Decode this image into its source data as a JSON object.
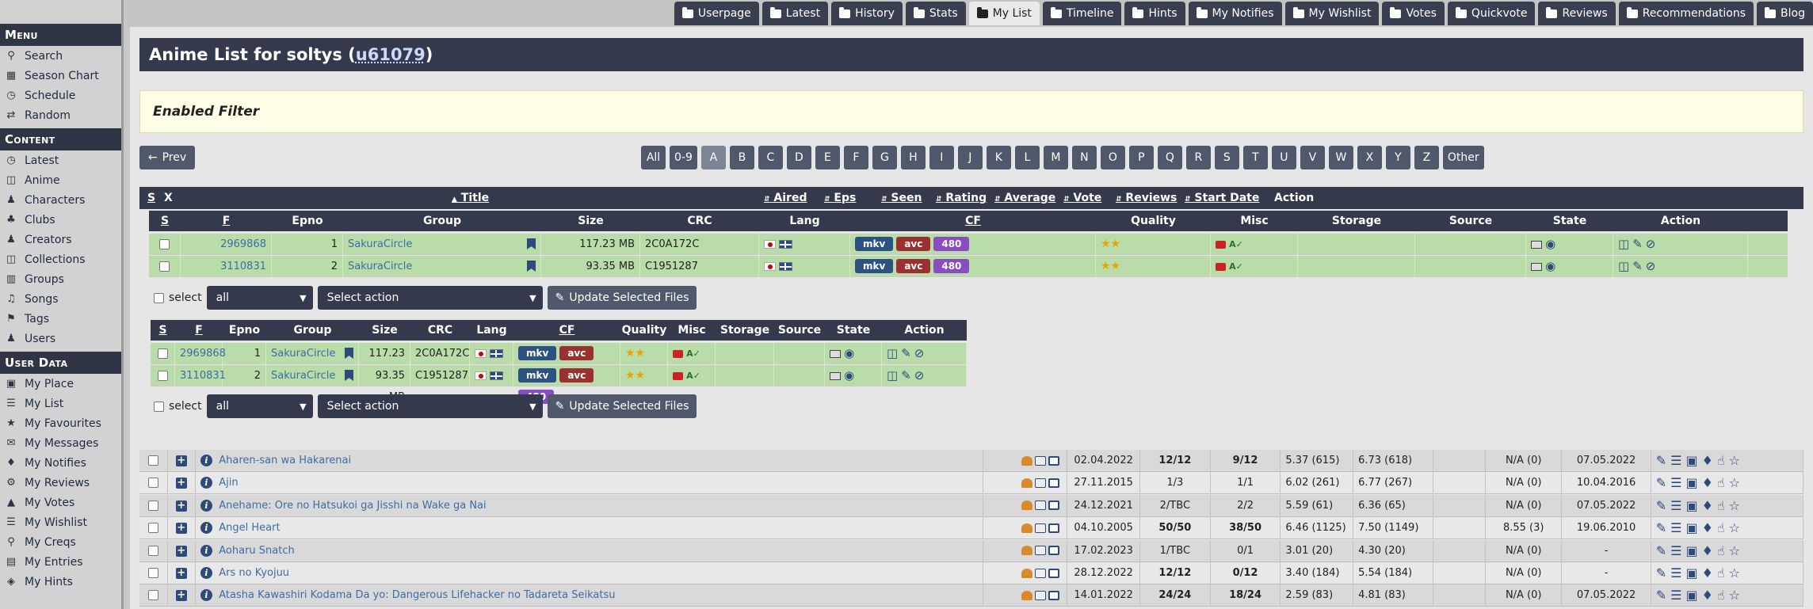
{
  "topnav": {
    "tabs": [
      "Userpage",
      "Latest",
      "History",
      "Stats",
      "My List",
      "Timeline",
      "Hints",
      "My Notifies",
      "My Wishlist",
      "Votes",
      "Quickvote",
      "Reviews",
      "Recommendations",
      "Blog"
    ],
    "active": "My List"
  },
  "sidebar": {
    "menu_title": "Menu",
    "menu": [
      {
        "label": "Search",
        "icon": "search-icon"
      },
      {
        "label": "Season Chart",
        "icon": "calendar-icon"
      },
      {
        "label": "Schedule",
        "icon": "clock-icon"
      },
      {
        "label": "Random",
        "icon": "random-icon"
      }
    ],
    "content_title": "Content",
    "content": [
      {
        "label": "Latest",
        "icon": "clock-icon"
      },
      {
        "label": "Anime",
        "icon": "film-icon"
      },
      {
        "label": "Characters",
        "icon": "users-icon"
      },
      {
        "label": "Clubs",
        "icon": "club-icon"
      },
      {
        "label": "Creators",
        "icon": "person-icon"
      },
      {
        "label": "Collections",
        "icon": "collection-icon"
      },
      {
        "label": "Groups",
        "icon": "group-icon"
      },
      {
        "label": "Songs",
        "icon": "music-icon"
      },
      {
        "label": "Tags",
        "icon": "tag-icon"
      },
      {
        "label": "Users",
        "icon": "user-icon"
      }
    ],
    "userdata_title": "User Data",
    "userdata": [
      {
        "label": "My Place",
        "icon": "id-card-icon"
      },
      {
        "label": "My List",
        "icon": "list-icon"
      },
      {
        "label": "My Favourites",
        "icon": "star-icon"
      },
      {
        "label": "My Messages",
        "icon": "envelope-icon"
      },
      {
        "label": "My Notifies",
        "icon": "bell-icon"
      },
      {
        "label": "My Reviews",
        "icon": "gear-icon"
      },
      {
        "label": "My Votes",
        "icon": "chart-icon"
      },
      {
        "label": "My Wishlist",
        "icon": "book-icon"
      },
      {
        "label": "My Creqs",
        "icon": "search-icon"
      },
      {
        "label": "My Entries",
        "icon": "entries-icon"
      },
      {
        "label": "My Hints",
        "icon": "hint-icon"
      }
    ]
  },
  "page": {
    "title_prefix": "Anime List for soltys (",
    "user_id": "u61079",
    "title_suffix": ")",
    "filter_label": "Enabled Filter",
    "prev_label": "Prev",
    "letters": [
      "All",
      "0-9",
      "A",
      "B",
      "C",
      "D",
      "E",
      "F",
      "G",
      "H",
      "I",
      "J",
      "K",
      "L",
      "M",
      "N",
      "O",
      "P",
      "Q",
      "R",
      "S",
      "T",
      "U",
      "V",
      "W",
      "X",
      "Y",
      "Z",
      "Other"
    ],
    "active_letter": "A"
  },
  "main_header": {
    "s": "S",
    "x": "X",
    "title": "Title",
    "aired": "Aired",
    "eps": "Eps",
    "seen": "Seen",
    "rating": "Rating",
    "average": "Average",
    "vote": "Vote",
    "reviews": "Reviews",
    "start_date": "Start Date",
    "action": "Action"
  },
  "file_header": {
    "s": "S",
    "f": "F",
    "epno": "Epno",
    "group": "Group",
    "size": "Size",
    "crc": "CRC",
    "lang": "Lang",
    "cf": "CF",
    "quality": "Quality",
    "misc": "Misc",
    "storage": "Storage",
    "source": "Source",
    "state": "State",
    "action": "Action"
  },
  "files": [
    {
      "fid": "2969868",
      "epno": "1",
      "group": "SakuraCircle",
      "size": "117.23 MB",
      "crc": "2C0A172C",
      "container": "mkv",
      "codec": "avc",
      "res": "480"
    },
    {
      "fid": "3110831",
      "epno": "2",
      "group": "SakuraCircle",
      "size": "93.35 MB",
      "crc": "C1951287",
      "container": "mkv",
      "codec": "avc",
      "res": "480"
    }
  ],
  "select_bar": {
    "select_label": "select",
    "scope_value": "all",
    "action_value": "Select action",
    "update_label": "Update Selected Files"
  },
  "anime": [
    {
      "title": "Aharen-san wa Hakarenai",
      "aired": "02.04.2022",
      "eps": "12/12",
      "seen": "9/12",
      "rating": "5.37 (615)",
      "average": "6.73 (618)",
      "reviews": "N/A (0)",
      "start": "07.05.2022",
      "eps_bold": true,
      "seen_bold": true
    },
    {
      "title": "Ajin",
      "aired": "27.11.2015",
      "eps": "1/3",
      "seen": "1/1",
      "rating": "6.02 (261)",
      "average": "6.77 (267)",
      "reviews": "N/A (0)",
      "start": "10.04.2016",
      "eps_bold": false,
      "seen_bold": false
    },
    {
      "title": "Anehame: Ore no Hatsukoi ga Jisshi na Wake ga Nai",
      "aired": "24.12.2021",
      "eps": "2/TBC",
      "seen": "2/2",
      "rating": "5.59 (61)",
      "average": "6.36 (65)",
      "reviews": "N/A (0)",
      "start": "07.05.2022",
      "eps_bold": false,
      "seen_bold": false
    },
    {
      "title": "Angel Heart",
      "aired": "04.10.2005",
      "eps": "50/50",
      "seen": "38/50",
      "rating": "6.46 (1125)",
      "average": "7.50 (1149)",
      "reviews": "8.55 (3)",
      "start": "19.06.2010",
      "eps_bold": true,
      "seen_bold": true
    },
    {
      "title": "Aoharu Snatch",
      "aired": "17.02.2023",
      "eps": "1/TBC",
      "seen": "0/1",
      "rating": "3.01 (20)",
      "average": "4.30 (20)",
      "reviews": "N/A (0)",
      "start": "-",
      "eps_bold": false,
      "seen_bold": false
    },
    {
      "title": "Ars no Kyojuu",
      "aired": "28.12.2022",
      "eps": "12/12",
      "seen": "0/12",
      "rating": "3.40 (184)",
      "average": "5.54 (184)",
      "reviews": "N/A (0)",
      "start": "-",
      "eps_bold": true,
      "seen_bold": true
    },
    {
      "title": "Atasha Kawashiri Kodama Da yo: Dangerous Lifehacker no Tadareta Seikatsu",
      "aired": "14.01.2022",
      "eps": "24/24",
      "seen": "18/24",
      "rating": "2.59 (83)",
      "average": "4.81 (83)",
      "reviews": "N/A (0)",
      "start": "07.05.2022",
      "eps_bold": true,
      "seen_bold": true
    }
  ]
}
